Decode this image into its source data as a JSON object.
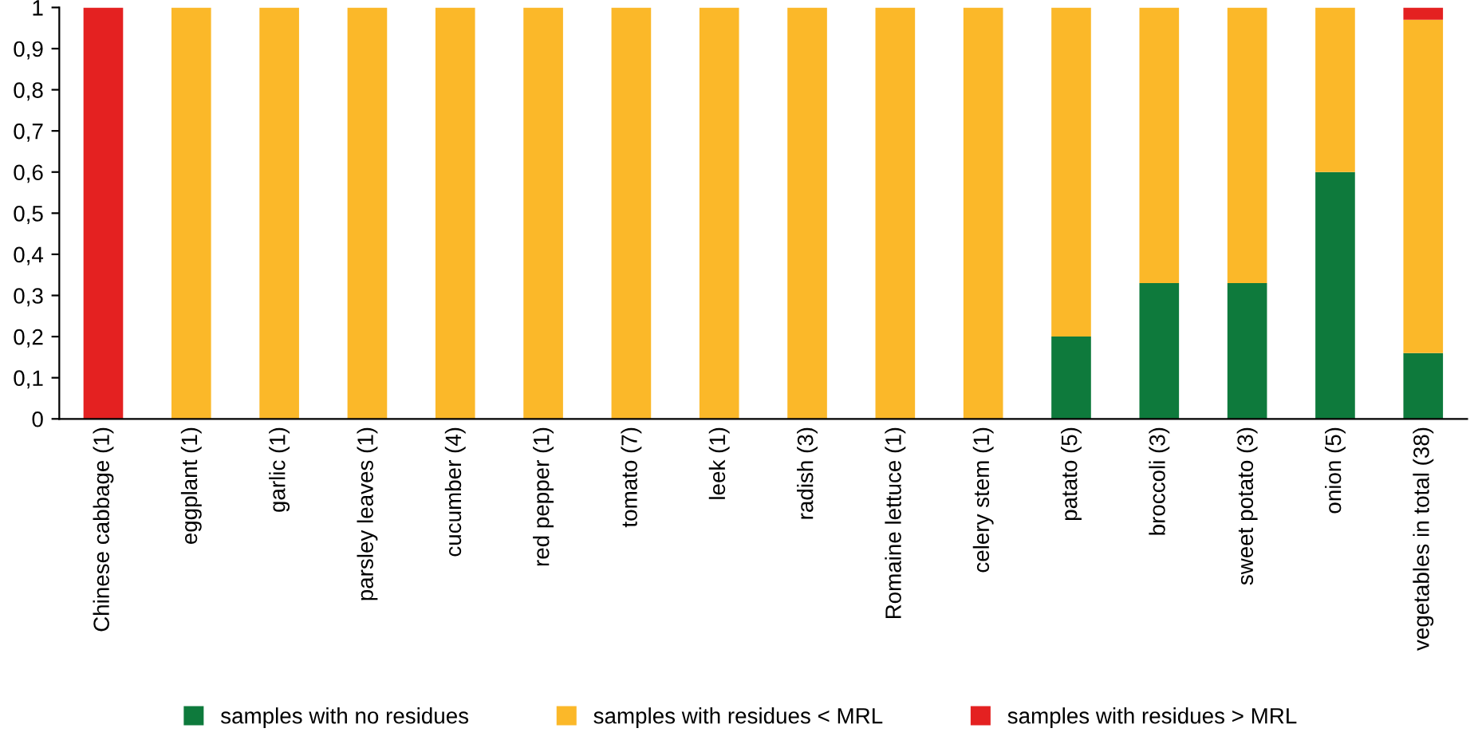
{
  "chart_data": {
    "type": "bar",
    "stacked": true,
    "categories": [
      "Chinese cabbage (1)",
      "eggplant (1)",
      "garlic (1)",
      "parsley leaves (1)",
      "cucumber (4)",
      "red pepper (1)",
      "tomato (7)",
      "leek (1)",
      "radish (3)",
      "Romaine lettuce (1)",
      "celery stem (1)",
      "patato (5)",
      "broccoli (3)",
      "sweet potato (3)",
      "onion (5)",
      "vegetables in total (38)"
    ],
    "series": [
      {
        "name": "samples with no residues",
        "color": "#0e7a3c",
        "values": [
          0,
          0,
          0,
          0,
          0,
          0,
          0,
          0,
          0,
          0,
          0,
          0.2,
          0.33,
          0.33,
          0.6,
          0.16
        ]
      },
      {
        "name": "samples with residues < MRL",
        "color": "#fbb829",
        "values": [
          0,
          1,
          1,
          1,
          1,
          1,
          1,
          1,
          1,
          1,
          1,
          0.8,
          0.67,
          0.67,
          0.4,
          0.81
        ]
      },
      {
        "name": "samples with residues > MRL",
        "color": "#e42121",
        "values": [
          1,
          0,
          0,
          0,
          0,
          0,
          0,
          0,
          0,
          0,
          0,
          0,
          0,
          0,
          0,
          0.03
        ]
      }
    ],
    "ylim": [
      0,
      1
    ],
    "yticks": [
      0,
      {
        "value": 0.1,
        "label": "0,1"
      },
      {
        "value": 0.2,
        "label": "0,2"
      },
      {
        "value": 0.3,
        "label": "0,3"
      },
      {
        "value": 0.4,
        "label": "0,4"
      },
      {
        "value": 0.5,
        "label": "0,5"
      },
      {
        "value": 0.6,
        "label": "0,6"
      },
      {
        "value": 0.7,
        "label": "0,7"
      },
      {
        "value": 0.8,
        "label": "0,8"
      },
      {
        "value": 0.9,
        "label": "0,9"
      },
      1
    ],
    "grid": false,
    "legend": "bottom"
  }
}
